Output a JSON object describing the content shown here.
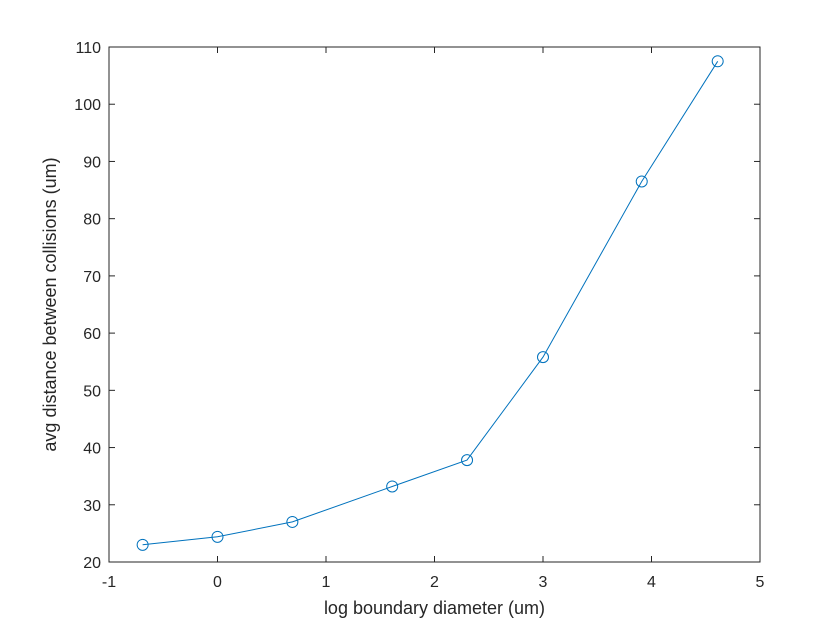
{
  "chart_data": {
    "type": "line",
    "xlabel": "log boundary diameter (um)",
    "ylabel": "avg distance between collisions (um)",
    "xlim": [
      -1,
      5
    ],
    "ylim": [
      20,
      110
    ],
    "xticks": [
      -1,
      0,
      1,
      2,
      3,
      4,
      5
    ],
    "xtick_labels": [
      "-1",
      "0",
      "1",
      "2",
      "3",
      "4",
      "5"
    ],
    "yticks": [
      20,
      30,
      40,
      50,
      60,
      70,
      80,
      90,
      100,
      110
    ],
    "ytick_labels": [
      "20",
      "30",
      "40",
      "50",
      "60",
      "70",
      "80",
      "90",
      "100",
      "110"
    ],
    "grid": false,
    "series": [
      {
        "marker": "circle",
        "color": "#0072bd",
        "x": [
          -0.69,
          0,
          0.69,
          1.61,
          2.3,
          3.0,
          3.91,
          4.61
        ],
        "y": [
          23.0,
          24.4,
          27.0,
          33.2,
          37.8,
          55.8,
          86.5,
          107.5
        ]
      }
    ]
  }
}
